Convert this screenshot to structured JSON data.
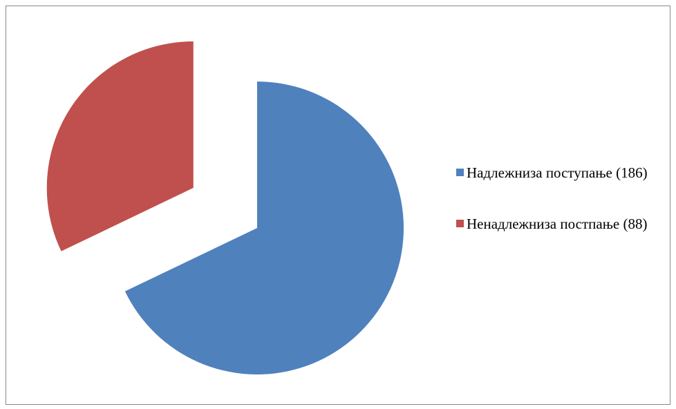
{
  "chart_data": {
    "type": "pie",
    "series": [
      {
        "name": "Надлежниза поступање (186)",
        "color": "#4f81bd",
        "values": [
          186
        ]
      },
      {
        "name": "Ненадлежниза постпање (88)",
        "color": "#c0504d",
        "values": [
          88
        ]
      }
    ],
    "legend": "right"
  }
}
